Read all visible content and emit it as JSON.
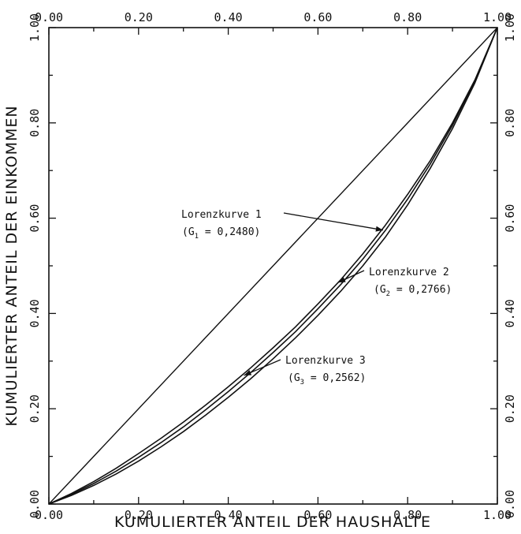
{
  "chart_data": {
    "type": "line",
    "title": "",
    "xlabel": "KUMULIERTER ANTEIL DER HAUSHALTE",
    "ylabel": "KUMULIERTER ANTEIL DER EINKOMMEN",
    "xlim": [
      0,
      1
    ],
    "ylim": [
      0,
      1
    ],
    "grid": false,
    "x_ticks": [
      "0.00",
      "0.20",
      "0.40",
      "0.60",
      "0.80",
      "1.00"
    ],
    "y_ticks": [
      "0.00",
      "0.20",
      "0.40",
      "0.60",
      "0.80",
      "1.00"
    ],
    "series": [
      {
        "name": "equality-line",
        "x": [
          0,
          1
        ],
        "y": [
          0,
          1
        ]
      },
      {
        "name": "Lorenzkurve 1",
        "x": [
          0,
          0.05,
          0.1,
          0.15,
          0.2,
          0.25,
          0.3,
          0.35,
          0.4,
          0.45,
          0.5,
          0.55,
          0.6,
          0.65,
          0.7,
          0.75,
          0.8,
          0.85,
          0.9,
          0.95,
          1.0
        ],
        "y": [
          0,
          0.022,
          0.047,
          0.075,
          0.106,
          0.138,
          0.172,
          0.208,
          0.246,
          0.286,
          0.328,
          0.372,
          0.42,
          0.47,
          0.525,
          0.585,
          0.65,
          0.72,
          0.8,
          0.89,
          1.0
        ]
      },
      {
        "name": "Lorenzkurve 2",
        "x": [
          0,
          0.05,
          0.1,
          0.15,
          0.2,
          0.25,
          0.3,
          0.35,
          0.4,
          0.45,
          0.5,
          0.55,
          0.6,
          0.65,
          0.7,
          0.75,
          0.8,
          0.85,
          0.9,
          0.95,
          1.0
        ],
        "y": [
          0,
          0.018,
          0.039,
          0.063,
          0.09,
          0.12,
          0.152,
          0.187,
          0.224,
          0.263,
          0.305,
          0.349,
          0.396,
          0.446,
          0.5,
          0.56,
          0.628,
          0.704,
          0.788,
          0.884,
          1.0
        ]
      },
      {
        "name": "Lorenzkurve 3",
        "x": [
          0,
          0.05,
          0.1,
          0.15,
          0.2,
          0.25,
          0.3,
          0.35,
          0.4,
          0.45,
          0.5,
          0.55,
          0.6,
          0.65,
          0.7,
          0.75,
          0.8,
          0.85,
          0.9,
          0.95,
          1.0
        ],
        "y": [
          0,
          0.02,
          0.043,
          0.069,
          0.098,
          0.129,
          0.162,
          0.198,
          0.236,
          0.276,
          0.318,
          0.362,
          0.41,
          0.46,
          0.514,
          0.574,
          0.64,
          0.713,
          0.795,
          0.888,
          1.0
        ]
      }
    ],
    "annotations": [
      {
        "label": "Lorenzkurve 1",
        "gini_symbol": "G",
        "gini_subscript": "1",
        "gini_value": " = 0,2480)",
        "arrow_target": [
          0.745,
          0.575
        ]
      },
      {
        "label": "Lorenzkurve 2",
        "gini_symbol": "G",
        "gini_subscript": "2",
        "gini_value": " = 0,2766)",
        "arrow_target": [
          0.645,
          0.465
        ]
      },
      {
        "label": "Lorenzkurve 3",
        "gini_symbol": "G",
        "gini_subscript": "3",
        "gini_value": " = 0,2562)",
        "arrow_target": [
          0.435,
          0.27
        ]
      }
    ]
  }
}
